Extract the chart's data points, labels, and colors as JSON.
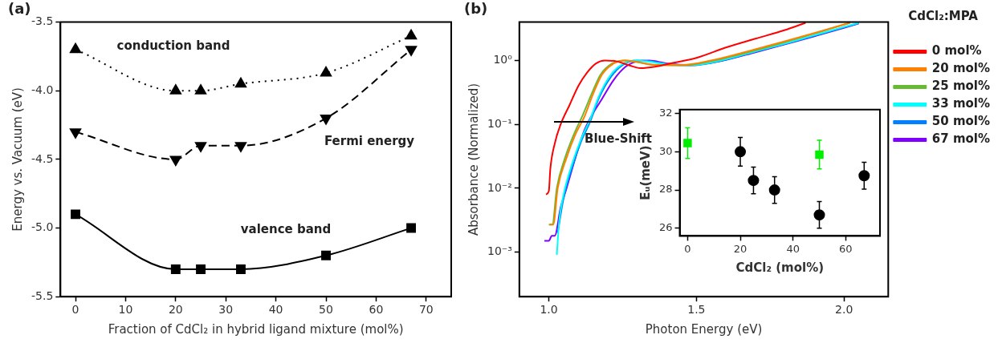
{
  "chart_data": [
    {
      "type": "line",
      "title": "(a)",
      "xlabel": "Fraction of CdCl₂ in hybrid ligand mixture (mol%)",
      "ylabel": "Energy vs. Vacuum (eV)",
      "xlim": [
        -3,
        75
      ],
      "ylim": [
        -5.5,
        -3.5
      ],
      "xticks": [
        0,
        10,
        20,
        30,
        40,
        50,
        60,
        70
      ],
      "yticks": [
        {
          "value": -5.5,
          "label": "-5.5"
        },
        {
          "value": -5,
          "label": "-5.0"
        },
        {
          "value": -4.5,
          "label": "-4.5"
        },
        {
          "value": -4,
          "label": "-4.0"
        },
        {
          "value": -3.5,
          "label": "-3.5"
        }
      ],
      "x": [
        0,
        20,
        25,
        33,
        50,
        67
      ],
      "series": [
        {
          "name": "conduction band",
          "color": "#000000",
          "marker": "triangle",
          "line_style": "dotted",
          "values": [
            -3.7,
            -4.0,
            -4.0,
            -3.95,
            -3.87,
            -3.6
          ]
        },
        {
          "name": "Fermi energy",
          "color": "#000000",
          "marker": "triangle-down",
          "line_style": "dashed",
          "values": [
            -4.3,
            -4.5,
            -4.4,
            -4.4,
            -4.2,
            -3.7
          ]
        },
        {
          "name": "valence band",
          "color": "#000000",
          "marker": "square",
          "line_style": "solid",
          "values": [
            -4.9,
            -5.3,
            -5.3,
            -5.3,
            -5.2,
            -5.0
          ]
        }
      ]
    },
    {
      "type": "line",
      "title": "(b)",
      "xlabel": "Photon Energy (eV)",
      "ylabel": "Absorbance (Normalized)",
      "log": "y",
      "xlim": [
        0.9,
        2.15
      ],
      "ylim": [
        0.0002,
        4
      ],
      "xticks": [
        {
          "value": 1,
          "label": "1.0"
        },
        1.5,
        {
          "value": 2,
          "label": "2.0"
        }
      ],
      "yticks": [
        {
          "value": 0.001,
          "label": "10⁻³"
        },
        {
          "value": 0.01,
          "label": "10⁻²"
        },
        {
          "value": 0.1,
          "label": "10⁻¹"
        },
        {
          "value": 1,
          "label": "10⁰"
        }
      ],
      "marker": "none",
      "legend": "right",
      "legend_title": "CdCl₂:MPA",
      "series": [
        {
          "name": "0 mol%",
          "color": "#ff0000",
          "x": [
            0.99,
            1.0,
            1.005,
            1.02,
            1.04,
            1.07,
            1.1,
            1.13,
            1.16,
            1.19,
            1.23,
            1.27,
            1.31,
            1.36,
            1.42,
            1.5,
            1.6,
            1.7,
            1.8,
            1.87
          ],
          "values": [
            0.008,
            0.009,
            0.02,
            0.05,
            0.1,
            0.2,
            0.4,
            0.65,
            0.9,
            1.0,
            0.97,
            0.85,
            0.76,
            0.8,
            0.92,
            1.1,
            1.6,
            2.2,
            3.0,
            3.9
          ]
        },
        {
          "name": "20 mol%",
          "color": "#ff8000",
          "x": [
            1.003,
            1.015,
            1.03,
            1.06,
            1.09,
            1.12,
            1.15,
            1.18,
            1.22,
            1.26,
            1.3,
            1.36,
            1.45,
            1.55,
            1.7,
            1.8,
            1.9,
            2.02
          ],
          "values": [
            0.0027,
            0.0027,
            0.01,
            0.03,
            0.07,
            0.13,
            0.3,
            0.6,
            0.9,
            1.0,
            0.95,
            0.85,
            0.85,
            1.0,
            1.5,
            2.0,
            2.7,
            3.9
          ]
        },
        {
          "name": "25 mol%",
          "color": "#66bb33",
          "x": [
            1.0,
            1.012,
            1.027,
            1.055,
            1.085,
            1.115,
            1.145,
            1.175,
            1.215,
            1.255,
            1.295,
            1.355,
            1.45,
            1.55,
            1.7,
            1.8,
            1.9,
            2.02
          ],
          "values": [
            0.0027,
            0.0027,
            0.01,
            0.03,
            0.07,
            0.14,
            0.3,
            0.6,
            0.9,
            1.0,
            0.95,
            0.86,
            0.84,
            0.98,
            1.45,
            1.95,
            2.65,
            3.9
          ]
        },
        {
          "name": "33 mol%",
          "color": "#00ffff",
          "x": [
            1.027,
            1.035,
            1.05,
            1.08,
            1.11,
            1.14,
            1.17,
            1.21,
            1.25,
            1.29,
            1.33,
            1.4,
            1.48,
            1.58,
            1.7,
            1.8,
            1.9,
            2.05
          ],
          "values": [
            0.0009,
            0.003,
            0.008,
            0.025,
            0.06,
            0.12,
            0.28,
            0.6,
            0.88,
            1.0,
            0.97,
            0.88,
            0.85,
            1.0,
            1.4,
            1.85,
            2.5,
            3.9
          ]
        },
        {
          "name": "50 mol%",
          "color": "#0080ff",
          "x": [
            1.03,
            1.05,
            1.08,
            1.11,
            1.14,
            1.17,
            1.21,
            1.25,
            1.3,
            1.34,
            1.4,
            1.48,
            1.58,
            1.7,
            1.8,
            1.9,
            2.05
          ],
          "values": [
            0.002,
            0.007,
            0.022,
            0.055,
            0.11,
            0.26,
            0.55,
            0.85,
            1.0,
            0.98,
            0.88,
            0.84,
            0.98,
            1.38,
            1.82,
            2.45,
            3.85
          ]
        },
        {
          "name": "67 mol%",
          "color": "#8000ff",
          "x": [
            0.985,
            1.0,
            1.01,
            1.02,
            1.04,
            1.06,
            1.09,
            1.12,
            1.15,
            1.18,
            1.22,
            1.26,
            1.3,
            1.34,
            1.4,
            1.48,
            1.58,
            1.7,
            1.8,
            1.9,
            2.05
          ],
          "values": [
            0.0015,
            0.0015,
            0.0018,
            0.0018,
            0.005,
            0.01,
            0.03,
            0.08,
            0.15,
            0.25,
            0.5,
            0.8,
            0.97,
            1.0,
            0.9,
            0.85,
            0.98,
            1.35,
            1.8,
            2.4,
            3.8
          ]
        }
      ],
      "annotations": [
        "Blue-Shift"
      ]
    },
    {
      "type": "scatter",
      "xlabel": "CdCl₂ (mol%)",
      "ylabel": "Eᵤ(meV)",
      "xlim": [
        -3,
        73
      ],
      "ylim": [
        25.6,
        32.2
      ],
      "xticks": [
        0,
        20,
        40,
        60
      ],
      "yticks": [
        26,
        28,
        30,
        32
      ],
      "series": [
        {
          "color": "#000000",
          "marker": "circle",
          "x": [
            20,
            25,
            33,
            50,
            67
          ],
          "values": [
            30.0,
            28.5,
            28.0,
            26.7,
            28.75
          ],
          "errors": [
            0.75,
            0.7,
            0.7,
            0.7,
            0.7
          ]
        },
        {
          "color": "#00ee00",
          "marker": "square",
          "x": [
            0,
            50
          ],
          "values": [
            30.45,
            29.85
          ],
          "errors": [
            0.8,
            0.75
          ]
        }
      ]
    }
  ]
}
